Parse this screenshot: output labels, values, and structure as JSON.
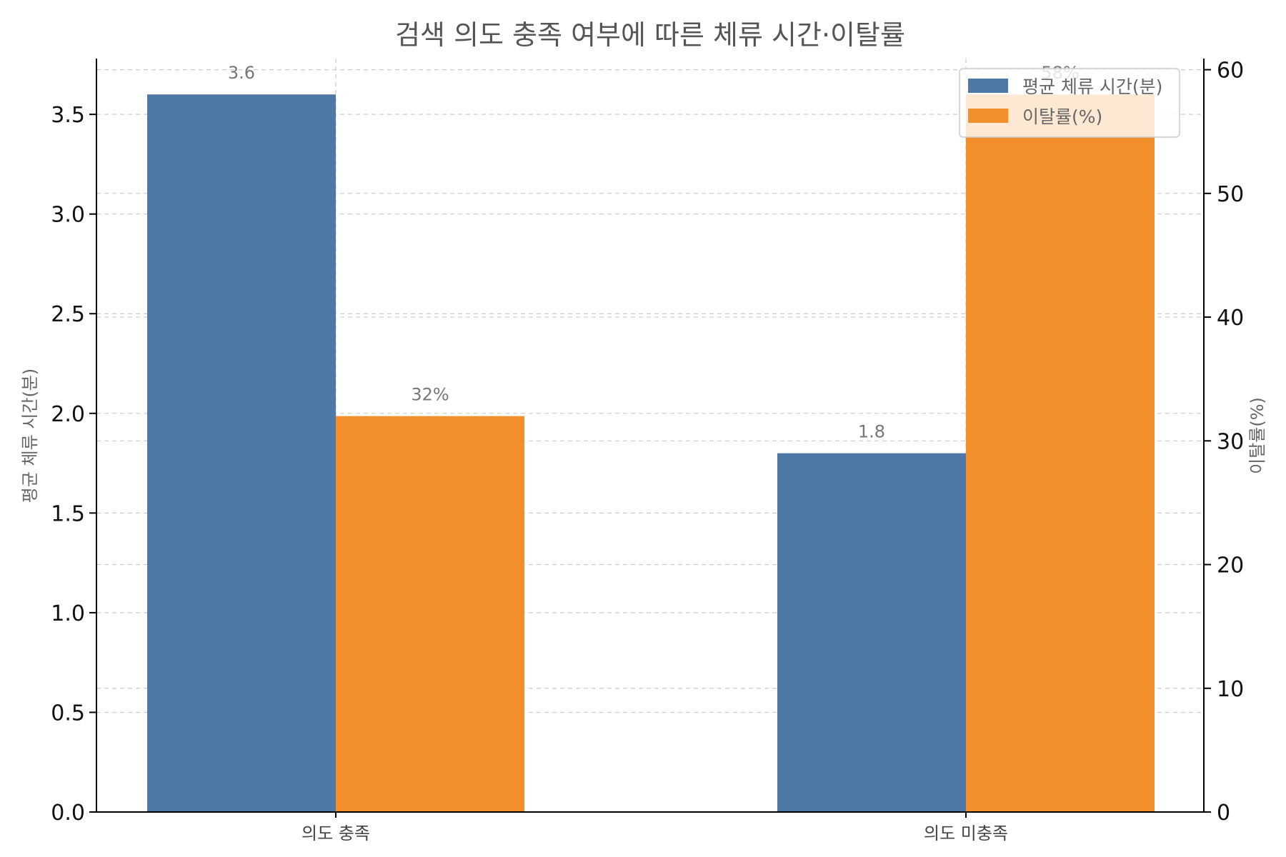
{
  "chart_data": {
    "type": "bar",
    "title": "검색 의도 충족 여부에 따른 체류 시간·이탈률",
    "categories": [
      "의도 충족",
      "의도 미충족"
    ],
    "series": [
      {
        "name": "평균 체류 시간(분)",
        "axis": "left",
        "values": [
          3.6,
          1.8
        ],
        "labels": [
          "3.6",
          "1.8"
        ],
        "color": "#4e79a7"
      },
      {
        "name": "이탈률(%)",
        "axis": "right",
        "values": [
          32,
          58
        ],
        "labels": [
          "32%",
          "58%"
        ],
        "color": "#f28e2b"
      }
    ],
    "y_left": {
      "label": "평균 체류 시간(분)",
      "ylim": [
        0,
        3.78
      ],
      "ticks": [
        0.0,
        0.5,
        1.0,
        1.5,
        2.0,
        2.5,
        3.0,
        3.5
      ],
      "tick_labels": [
        "0.0",
        "0.5",
        "1.0",
        "1.5",
        "2.0",
        "2.5",
        "3.0",
        "3.5"
      ]
    },
    "y_right": {
      "label": "이탈률(%)",
      "ylim": [
        0,
        60.9
      ],
      "ticks": [
        0,
        10,
        20,
        30,
        40,
        50,
        60
      ],
      "tick_labels": [
        "0",
        "10",
        "20",
        "30",
        "40",
        "50",
        "60"
      ]
    },
    "grid": true,
    "legend": {
      "position": "top-right",
      "entries": [
        "평균 체류 시간(분)",
        "이탈률(%)"
      ]
    }
  }
}
